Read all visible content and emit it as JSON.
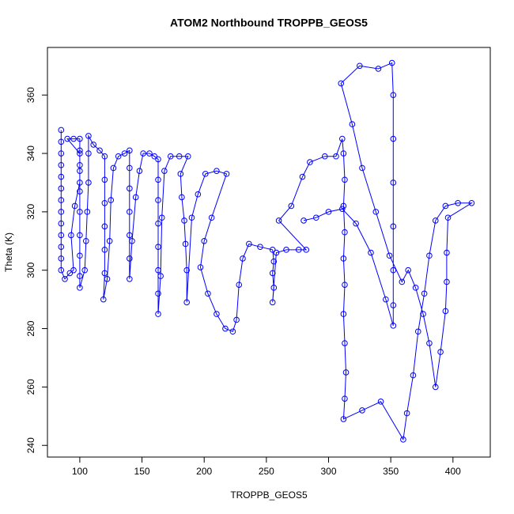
{
  "chart_data": {
    "type": "line",
    "marker": "circle",
    "title": "ATOM2 Northbound TROPPB_GEOS5",
    "x_label": "TROPPB_GEOS5",
    "y_label": "Theta (K)",
    "color": "#0000ff",
    "xlim": [
      74,
      430
    ],
    "ylim": [
      236,
      376.3
    ],
    "xticks": [
      100,
      150,
      200,
      250,
      300,
      350,
      400
    ],
    "yticks": [
      240,
      260,
      280,
      300,
      320,
      340,
      360
    ],
    "x": [
      85,
      85,
      85,
      85,
      85,
      85,
      85,
      85,
      85,
      85,
      85,
      85,
      85,
      88,
      92,
      95,
      93,
      96,
      100,
      100,
      100,
      100,
      95,
      90,
      100,
      100,
      100,
      100,
      100,
      100,
      100,
      100,
      104,
      105,
      106,
      107,
      107,
      107,
      111,
      116,
      120,
      120,
      120,
      120,
      120,
      120,
      119,
      122,
      124,
      125,
      127,
      131,
      136,
      140,
      140,
      140,
      140,
      140,
      140,
      140,
      142,
      145,
      148,
      151,
      156,
      160,
      163,
      163,
      163,
      163,
      163,
      163,
      163,
      163,
      165,
      166,
      168,
      173,
      180,
      187,
      181,
      182,
      184,
      185,
      186,
      186,
      190,
      195,
      201,
      210,
      218,
      206,
      200,
      197,
      203,
      210,
      217,
      223,
      226,
      228,
      231,
      236,
      245,
      255,
      256,
      255,
      256,
      255,
      258,
      266,
      276,
      282,
      260,
      270,
      279,
      285,
      297,
      306,
      311,
      312,
      313,
      312,
      313,
      312,
      313,
      312,
      313,
      314,
      313,
      312,
      327,
      342,
      360,
      363,
      368,
      372,
      377,
      381,
      386,
      394,
      404,
      415,
      396,
      395,
      395,
      394,
      390,
      386,
      381,
      376,
      370,
      364,
      359,
      349,
      338,
      327,
      319,
      310,
      325,
      340,
      351,
      352,
      352,
      352,
      352,
      352,
      352,
      352,
      346,
      334,
      322,
      311,
      300,
      290,
      280
    ],
    "y": [
      348,
      344,
      340,
      336,
      332,
      328,
      324,
      320,
      316,
      312,
      308,
      304,
      300,
      297,
      299,
      300,
      312,
      322,
      330,
      336,
      341,
      345,
      345,
      345,
      340,
      334,
      327,
      320,
      312,
      305,
      298,
      294,
      300,
      310,
      320,
      330,
      340,
      346,
      343,
      341,
      339,
      331,
      323,
      315,
      307,
      299,
      290,
      297,
      310,
      324,
      335,
      339,
      340,
      341,
      335,
      328,
      320,
      312,
      304,
      297,
      310,
      325,
      334,
      340,
      340,
      339,
      338,
      331,
      324,
      316,
      308,
      300,
      292,
      285,
      298,
      318,
      334,
      339,
      339,
      339,
      333,
      325,
      317,
      309,
      300,
      289,
      318,
      326,
      333,
      334,
      333,
      318,
      310,
      301,
      292,
      285,
      280,
      279,
      283,
      295,
      304,
      309,
      308,
      307,
      303,
      299,
      294,
      289,
      306,
      307,
      307,
      307,
      317,
      322,
      332,
      337,
      339,
      339,
      345,
      340,
      331,
      322,
      313,
      304,
      295,
      285,
      275,
      265,
      256,
      249,
      252,
      255,
      242,
      251,
      264,
      279,
      292,
      305,
      317,
      322,
      323,
      323,
      318,
      306,
      296,
      286,
      272,
      260,
      275,
      285,
      294,
      300,
      296,
      305,
      320,
      335,
      350,
      364,
      370,
      369,
      371,
      360,
      345,
      330,
      315,
      300,
      288,
      281,
      290,
      306,
      316,
      321,
      320,
      318,
      317
    ]
  }
}
